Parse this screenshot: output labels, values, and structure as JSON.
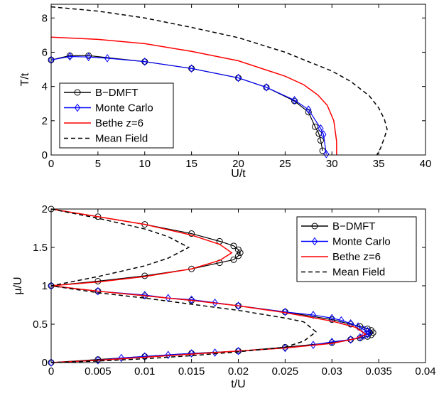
{
  "chart_data": [
    {
      "type": "line",
      "title": "",
      "xlabel": "U/t",
      "ylabel": "T/t",
      "xlim": [
        0,
        40
      ],
      "ylim": [
        0,
        8.8
      ],
      "xticks": [
        0,
        5,
        10,
        15,
        20,
        25,
        30,
        35,
        40
      ],
      "xtick_labels": [
        "0",
        "5",
        "10",
        "15",
        "20",
        "25",
        "30",
        "35",
        "40"
      ],
      "yticks": [
        0,
        2,
        4,
        6,
        8
      ],
      "ytick_labels": [
        "0",
        "2",
        "4",
        "6",
        "8"
      ],
      "grid": false,
      "legend_position": "bottom-left",
      "series": [
        {
          "name": "B−DMFT",
          "color": "#000000",
          "line": "solid",
          "marker": "circle",
          "x": [
            0,
            2,
            4,
            10,
            15,
            20,
            23,
            26,
            27.5,
            28.2,
            28.6,
            28.8,
            29.0
          ],
          "y": [
            5.55,
            5.8,
            5.8,
            5.45,
            5.05,
            4.5,
            3.95,
            3.15,
            2.5,
            1.65,
            1.25,
            0.85,
            0.25
          ]
        },
        {
          "name": "Monte Carlo",
          "color": "#0000ff",
          "line": "solid",
          "marker": "diamond",
          "x": [
            0,
            2,
            4,
            6,
            10,
            15,
            20,
            23,
            26,
            27.5,
            28.8,
            29.1,
            29.4
          ],
          "y": [
            5.55,
            5.75,
            5.72,
            5.65,
            5.45,
            5.05,
            4.5,
            3.95,
            3.2,
            2.65,
            1.55,
            1.2,
            0.05
          ]
        },
        {
          "name": "Bethe z=6",
          "color": "#ff0000",
          "line": "solid",
          "marker": "none",
          "x": [
            0,
            5,
            10,
            15,
            20,
            25,
            27,
            28.5,
            29.5,
            30.2,
            30.5,
            30.5
          ],
          "y": [
            6.88,
            6.75,
            6.5,
            6.05,
            5.5,
            4.6,
            4.1,
            3.5,
            2.9,
            2.0,
            0.8,
            0
          ]
        },
        {
          "name": "Mean Field",
          "color": "#000000",
          "line": "dashed",
          "marker": "none",
          "x": [
            0,
            5,
            10,
            15,
            20,
            25,
            30,
            32,
            34,
            35,
            35.6,
            35.9,
            35.6,
            35.2,
            34.8
          ],
          "y": [
            8.65,
            8.4,
            8.0,
            7.45,
            6.85,
            6.0,
            4.9,
            4.3,
            3.45,
            2.75,
            2.1,
            1.5,
            1.0,
            0.4,
            0
          ]
        }
      ]
    },
    {
      "type": "line",
      "title": "",
      "xlabel": "t/U",
      "ylabel": "μ/U",
      "xlim": [
        0,
        0.04
      ],
      "ylim": [
        0,
        2
      ],
      "xticks": [
        0,
        0.005,
        0.01,
        0.015,
        0.02,
        0.025,
        0.03,
        0.035,
        0.04
      ],
      "xtick_labels": [
        "0",
        "0.005",
        "0.01",
        "0.015",
        "0.02",
        "0.025",
        "0.03",
        "0.035",
        "0.04"
      ],
      "yticks": [
        0,
        0.5,
        1,
        1.5,
        2
      ],
      "ytick_labels": [
        "0",
        "0.5",
        "1",
        "1.5",
        "2"
      ],
      "grid": false,
      "legend_position": "top-right",
      "series": [
        {
          "name": "B−DMFT",
          "color": "#000000",
          "line": "solid",
          "marker": "circle",
          "x": [
            0,
            0.005,
            0.01,
            0.015,
            0.018,
            0.0195,
            0.02,
            0.0202,
            0.02,
            0.0195,
            0.018,
            0.015,
            0.01,
            0.005,
            0,
            0.005,
            0.01,
            0.015,
            0.02,
            0.025,
            0.03,
            0.032,
            0.033,
            0.0338,
            0.0342,
            0.0344,
            0.0342,
            0.0338,
            0.033,
            0.032,
            0.03,
            0.025,
            0.02,
            0.015,
            0.01,
            0.005,
            0
          ],
          "y": [
            2,
            1.9,
            1.8,
            1.68,
            1.58,
            1.52,
            1.47,
            1.43,
            1.39,
            1.34,
            1.3,
            1.22,
            1.13,
            1.06,
            1,
            0.93,
            0.87,
            0.81,
            0.74,
            0.66,
            0.56,
            0.5,
            0.47,
            0.44,
            0.42,
            0.39,
            0.36,
            0.34,
            0.32,
            0.3,
            0.26,
            0.2,
            0.15,
            0.12,
            0.08,
            0.04,
            0
          ]
        },
        {
          "name": "Monte Carlo",
          "color": "#0000ff",
          "line": "solid",
          "marker": "diamond",
          "x": [
            0,
            0.005,
            0.01,
            0.0125,
            0.015,
            0.0175,
            0.02,
            0.025,
            0.028,
            0.03,
            0.031,
            0.032,
            0.0328,
            0.0334,
            0.0338,
            0.034,
            0.0338,
            0.0334,
            0.033,
            0.032,
            0.03,
            0.028,
            0.025,
            0.02,
            0.0175,
            0.015,
            0.0125,
            0.01,
            0.0075,
            0.005,
            0
          ],
          "y": [
            1,
            0.93,
            0.88,
            0.84,
            0.82,
            0.78,
            0.74,
            0.66,
            0.62,
            0.58,
            0.55,
            0.51,
            0.47,
            0.43,
            0.41,
            0.39,
            0.37,
            0.35,
            0.33,
            0.3,
            0.27,
            0.23,
            0.19,
            0.15,
            0.13,
            0.12,
            0.1,
            0.08,
            0.06,
            0.03,
            0
          ]
        },
        {
          "name": "Bethe z=6",
          "color": "#ff0000",
          "line": "solid",
          "marker": "none",
          "x": [
            0,
            0.005,
            0.01,
            0.015,
            0.018,
            0.0193,
            0.018,
            0.015,
            0.01,
            0.005,
            0,
            0.005,
            0.01,
            0.015,
            0.02,
            0.025,
            0.03,
            0.0325,
            0.0336,
            0.0325,
            0.03,
            0.025,
            0.02,
            0.015,
            0.01,
            0.005,
            0
          ],
          "y": [
            2,
            1.9,
            1.8,
            1.66,
            1.54,
            1.43,
            1.33,
            1.22,
            1.12,
            1.05,
            1,
            0.93,
            0.87,
            0.81,
            0.74,
            0.65,
            0.54,
            0.46,
            0.37,
            0.31,
            0.25,
            0.19,
            0.15,
            0.11,
            0.07,
            0.03,
            0
          ]
        },
        {
          "name": "Mean Field",
          "color": "#000000",
          "line": "dashed",
          "marker": "none",
          "x": [
            0,
            0.005,
            0.01,
            0.0125,
            0.0147,
            0.0125,
            0.01,
            0.005,
            0,
            0.005,
            0.01,
            0.015,
            0.02,
            0.025,
            0.027,
            0.0283,
            0.027,
            0.025,
            0.02,
            0.015,
            0.01,
            0.005,
            0
          ],
          "y": [
            2,
            1.88,
            1.74,
            1.64,
            1.5,
            1.36,
            1.26,
            1.12,
            1,
            0.91,
            0.84,
            0.76,
            0.68,
            0.58,
            0.53,
            0.4,
            0.28,
            0.2,
            0.14,
            0.09,
            0.05,
            0.02,
            0
          ]
        }
      ]
    }
  ]
}
